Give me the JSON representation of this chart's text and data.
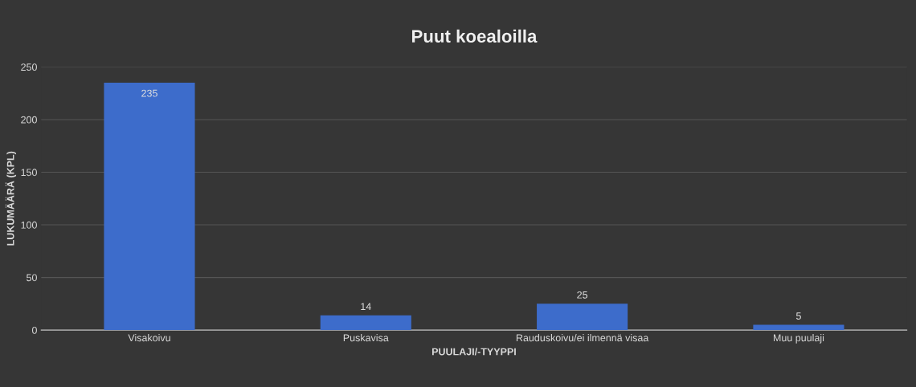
{
  "chart_data": {
    "type": "bar",
    "title": "Puut koealoilla",
    "xlabel": "PUULAJI/-TYYPPI",
    "ylabel": "LUKUMÄÄRÄ (KPL)",
    "categories": [
      "Visakoivu",
      "Puskavisa",
      "Rauduskoivu/ei ilmennä visaa",
      "Muu puulaji"
    ],
    "values": [
      235,
      14,
      25,
      5
    ],
    "color": "#3d6ccb",
    "ylim": [
      0,
      250
    ],
    "yticks": [
      0,
      50,
      100,
      150,
      200,
      250
    ],
    "grid": "y",
    "data_labels": true
  }
}
